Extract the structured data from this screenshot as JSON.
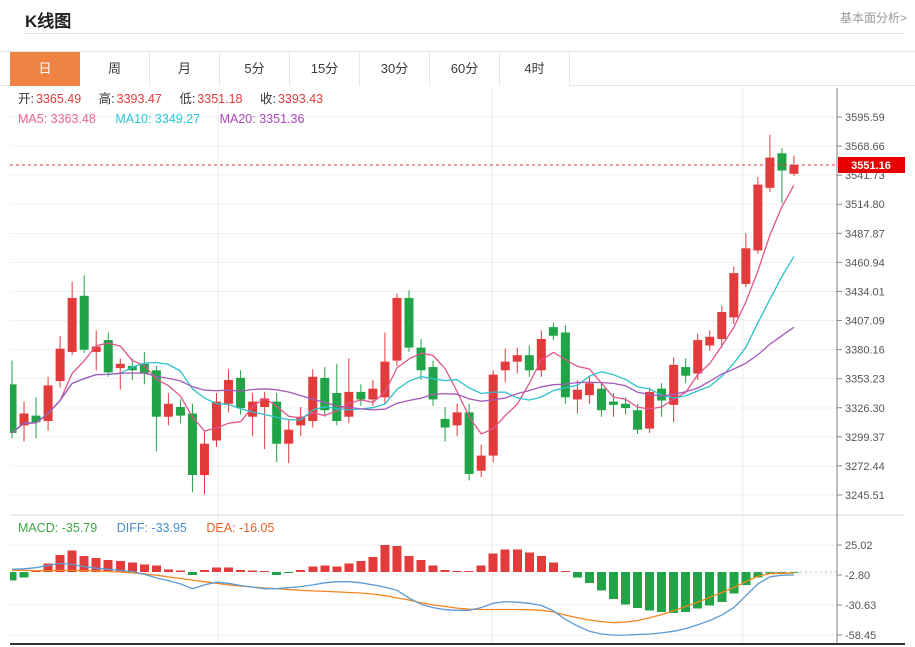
{
  "header": {
    "title": "K线图",
    "link": "基本面分析>"
  },
  "tabs": {
    "items": [
      {
        "label": "日",
        "active": true
      },
      {
        "label": "周",
        "active": false
      },
      {
        "label": "月",
        "active": false
      },
      {
        "label": "5分",
        "active": false
      },
      {
        "label": "15分",
        "active": false
      },
      {
        "label": "30分",
        "active": false
      },
      {
        "label": "60分",
        "active": false
      },
      {
        "label": "4时",
        "active": false
      }
    ]
  },
  "ohlc": {
    "open_label": "开:",
    "open_value": "3365.49",
    "high_label": "高:",
    "high_value": "3393.47",
    "low_label": "低:",
    "low_value": "3351.18",
    "close_label": "收:",
    "close_value": "3393.43"
  },
  "ma_row": {
    "ma5": "MA5: 3363.48",
    "ma10": "MA10: 3349.27",
    "ma20": "MA20: 3351.36"
  },
  "macd_row": {
    "macd": "MACD: -35.79",
    "diff": "DIFF: -33.95",
    "dea": "DEA: -16.05"
  },
  "colors": {
    "up": "#e23b3b",
    "down": "#21a347",
    "ma5": "#e0558c",
    "ma10": "#2bc2cc",
    "ma20": "#a35ab9",
    "diff_line": "#5b9bd5",
    "dea_line": "#f5861f",
    "price_tag_bg": "#e60000",
    "price_line": "#e23b3b",
    "tab_active_bg": "#ef8343",
    "ohlc_value": "#e23b3b",
    "ma5_text": "#f06292",
    "ma10_text": "#26c6da",
    "ma20_text": "#ab47bc",
    "macd_text": "#3aa93f",
    "diff_text": "#4a90d2",
    "dea_text": "#e8622d",
    "grid": "#f0f0f0",
    "vgrid": "#ececec",
    "axis_text": "#555",
    "axis_line": "#808080"
  },
  "chart_data": {
    "type": "candlestick+macd",
    "title": "K线图 daily candlestick chart with MA5/MA10/MA20 overlays and MACD histogram",
    "price_axis": {
      "tick_labels": [
        "3595.59",
        "3568.66",
        "3541.73",
        "3514.80",
        "3487.87",
        "3460.94",
        "3434.01",
        "3407.09",
        "3380.16",
        "3353.23",
        "3326.30",
        "3299.37",
        "3272.44",
        "3245.51"
      ],
      "tick_values": [
        3595.59,
        3568.66,
        3541.73,
        3514.8,
        3487.87,
        3460.94,
        3434.01,
        3407.09,
        3380.16,
        3353.23,
        3326.3,
        3299.37,
        3272.44,
        3245.51
      ]
    },
    "current_price": 3551.16,
    "current_price_label": "3551.16",
    "candles_ochl_note": "each candle is [open, close, high, low]; red=up green=down",
    "candles": [
      [
        3348,
        3303,
        3370,
        3298
      ],
      [
        3310,
        3321,
        3332,
        3295
      ],
      [
        3319,
        3313,
        3336,
        3298
      ],
      [
        3314,
        3347,
        3355,
        3305
      ],
      [
        3351,
        3381,
        3393,
        3345
      ],
      [
        3378,
        3428,
        3443,
        3375
      ],
      [
        3430,
        3380,
        3449,
        3377
      ],
      [
        3378,
        3383,
        3398,
        3361
      ],
      [
        3389,
        3359,
        3396,
        3355
      ],
      [
        3363,
        3367,
        3372,
        3343
      ],
      [
        3365,
        3361,
        3372,
        3352
      ],
      [
        3367,
        3358,
        3378,
        3348
      ],
      [
        3361,
        3318,
        3365,
        3286
      ],
      [
        3318,
        3330,
        3340,
        3310
      ],
      [
        3327,
        3319,
        3334,
        3312
      ],
      [
        3321,
        3264,
        3330,
        3248
      ],
      [
        3264,
        3293,
        3305,
        3246
      ],
      [
        3296,
        3332,
        3340,
        3290
      ],
      [
        3330,
        3352,
        3362,
        3322
      ],
      [
        3354,
        3326,
        3361,
        3320
      ],
      [
        3318,
        3332,
        3340,
        3300
      ],
      [
        3327,
        3335,
        3341,
        3288
      ],
      [
        3332,
        3293,
        3340,
        3276
      ],
      [
        3293,
        3306,
        3315,
        3275
      ],
      [
        3310,
        3318,
        3327,
        3300
      ],
      [
        3314,
        3355,
        3362,
        3308
      ],
      [
        3354,
        3324,
        3364,
        3318
      ],
      [
        3340,
        3314,
        3367,
        3310
      ],
      [
        3318,
        3341,
        3372,
        3312
      ],
      [
        3341,
        3334,
        3348,
        3328
      ],
      [
        3334,
        3344,
        3352,
        3328
      ],
      [
        3336,
        3369,
        3396,
        3330
      ],
      [
        3370,
        3428,
        3432,
        3365
      ],
      [
        3428,
        3382,
        3435,
        3378
      ],
      [
        3382,
        3361,
        3390,
        3352
      ],
      [
        3364,
        3334,
        3370,
        3328
      ],
      [
        3316,
        3308,
        3327,
        3295
      ],
      [
        3310,
        3322,
        3330,
        3300
      ],
      [
        3322,
        3265,
        3330,
        3259
      ],
      [
        3268,
        3282,
        3292,
        3262
      ],
      [
        3282,
        3357,
        3361,
        3276
      ],
      [
        3361,
        3369,
        3381,
        3350
      ],
      [
        3369,
        3375,
        3382,
        3358
      ],
      [
        3375,
        3361,
        3384,
        3355
      ],
      [
        3361,
        3390,
        3398,
        3355
      ],
      [
        3401,
        3393,
        3405,
        3389
      ],
      [
        3396,
        3336,
        3403,
        3330
      ],
      [
        3334,
        3343,
        3352,
        3321
      ],
      [
        3338,
        3349,
        3356,
        3330
      ],
      [
        3344,
        3324,
        3350,
        3318
      ],
      [
        3332,
        3329,
        3340,
        3318
      ],
      [
        3330,
        3326,
        3336,
        3320
      ],
      [
        3324,
        3306,
        3330,
        3302
      ],
      [
        3307,
        3341,
        3345,
        3303
      ],
      [
        3344,
        3333,
        3349,
        3318
      ],
      [
        3329,
        3366,
        3373,
        3313
      ],
      [
        3364,
        3356,
        3372,
        3349
      ],
      [
        3358,
        3389,
        3395,
        3352
      ],
      [
        3384,
        3392,
        3398,
        3379
      ],
      [
        3390,
        3415,
        3421,
        3382
      ],
      [
        3410,
        3451,
        3457,
        3404
      ],
      [
        3441,
        3474,
        3488,
        3438
      ],
      [
        3472,
        3533,
        3540,
        3469
      ],
      [
        3530,
        3558,
        3579,
        3526
      ],
      [
        3562,
        3546,
        3567,
        3516
      ],
      [
        3543,
        3551.16,
        3560,
        3541
      ]
    ],
    "ma_periods": [
      5,
      10,
      20
    ],
    "macd": {
      "axis_tick_labels": [
        "25.02",
        "-2.80",
        "-30.63",
        "-58.45"
      ],
      "axis_tick_values": [
        25.02,
        -2.8,
        -30.63,
        -58.45
      ],
      "bars": [
        -8,
        -5,
        2,
        8,
        16,
        20,
        15,
        13,
        11,
        10,
        9,
        7,
        6,
        2.5,
        1.5,
        -3,
        2,
        4,
        4,
        2,
        1.5,
        0.5,
        -3,
        -0.5,
        2,
        5,
        6,
        5,
        8,
        10,
        14,
        25,
        24,
        15,
        11,
        6,
        2,
        1,
        0.5,
        6,
        17,
        21,
        21,
        18,
        15,
        9,
        1,
        -5,
        -10,
        -17,
        -25,
        -30,
        -33.5,
        -35.5,
        -37,
        -38,
        -37,
        -34,
        -31,
        -28,
        -20,
        -12,
        -5,
        -1.5,
        -0.8,
        -0.5
      ],
      "diff": [
        2.5,
        3,
        4,
        6,
        8,
        7,
        5,
        3.5,
        2.5,
        1.5,
        0.5,
        -2,
        -5.5,
        -8,
        -11,
        -15.5,
        -12,
        -9.5,
        -10.5,
        -12.5,
        -14,
        -15.5,
        -15.5,
        -14.5,
        -13.5,
        -12,
        -10,
        -9,
        -9,
        -10,
        -12,
        -14,
        -17,
        -24,
        -30,
        -33,
        -35,
        -35.5,
        -35.5,
        -33,
        -29,
        -27.5,
        -28,
        -29,
        -31,
        -36,
        -44,
        -50,
        -55,
        -57.5,
        -58.5,
        -58.5,
        -58,
        -57.5,
        -56.5,
        -55,
        -52.5,
        -49,
        -45,
        -40,
        -33,
        -22,
        -11,
        -4.5,
        -3,
        -2.8
      ],
      "dea": [
        1.5,
        1.5,
        1.2,
        1.2,
        1.5,
        1.5,
        1.2,
        1,
        0.5,
        0,
        -0.8,
        -1.8,
        -3,
        -4.5,
        -6,
        -7.5,
        -9,
        -10.5,
        -12,
        -13,
        -14,
        -14.8,
        -15.5,
        -16.2,
        -17,
        -17.5,
        -18,
        -18.5,
        -19,
        -19.5,
        -20.5,
        -22,
        -24,
        -26,
        -28.5,
        -30.5,
        -32,
        -33.5,
        -34.5,
        -34.8,
        -34.8,
        -34.8,
        -34.8,
        -35,
        -35.5,
        -37,
        -40,
        -42.5,
        -44.5,
        -46,
        -47,
        -46.5,
        -45,
        -42.5,
        -39.5,
        -36,
        -32,
        -28,
        -23.5,
        -19,
        -14.5,
        -9,
        -4,
        -1.5,
        -1.2,
        -1
      ]
    }
  }
}
